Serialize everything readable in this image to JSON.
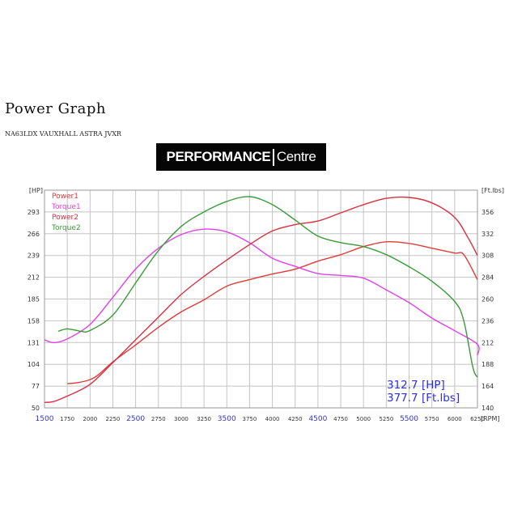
{
  "page": {
    "title": "Power Graph",
    "subtitle": "NA63LDX VAUXHALL ASTRA JVXR",
    "logo": {
      "part1": "PERFORMANCE",
      "part2": "Centre"
    }
  },
  "colors": {
    "power1": "#e03a3a",
    "torque1": "#e040e8",
    "power2": "#d93040",
    "torque2": "#3a9a3a",
    "grid": "#c4c4c4",
    "readout": "#2e2ee0",
    "highlight_tick": "#3333cc"
  },
  "chart_data": {
    "type": "line",
    "x_unit": "RPM",
    "xlim": [
      1500,
      6250
    ],
    "x_ticks": [
      1500,
      1750,
      2000,
      2250,
      2500,
      2750,
      3000,
      3250,
      3500,
      3750,
      4000,
      4250,
      4500,
      4750,
      5000,
      5250,
      5500,
      5750,
      6000,
      6250
    ],
    "x_ticks_highlight": [
      1500,
      2500,
      3500,
      4500,
      5500
    ],
    "y_left": {
      "unit_label": "[HP]",
      "ylim": [
        50,
        320
      ],
      "ticks": [
        50,
        77,
        104,
        131,
        158,
        185,
        212,
        239,
        266,
        293
      ]
    },
    "y_right": {
      "unit_label": "[Ft.lbs]",
      "ylim": [
        140,
        380
      ],
      "ticks": [
        140,
        164,
        188,
        212,
        236,
        260,
        284,
        308,
        332,
        356
      ]
    },
    "grid": true,
    "legend_position": "top-left",
    "series": [
      {
        "name": "Power1",
        "axis": "left",
        "color": "#e03a3a",
        "points": [
          [
            1750,
            80
          ],
          [
            1850,
            81
          ],
          [
            2000,
            85
          ],
          [
            2100,
            92
          ],
          [
            2250,
            107
          ],
          [
            2500,
            128
          ],
          [
            2750,
            150
          ],
          [
            3000,
            169
          ],
          [
            3250,
            184
          ],
          [
            3500,
            201
          ],
          [
            3750,
            209
          ],
          [
            4000,
            216
          ],
          [
            4250,
            222
          ],
          [
            4500,
            232
          ],
          [
            4750,
            240
          ],
          [
            5000,
            250
          ],
          [
            5250,
            256
          ],
          [
            5500,
            254
          ],
          [
            5750,
            248
          ],
          [
            6000,
            242
          ],
          [
            6100,
            240
          ],
          [
            6250,
            209
          ]
        ]
      },
      {
        "name": "Torque1",
        "axis": "right",
        "color": "#e040e8",
        "points": [
          [
            1500,
            215
          ],
          [
            1600,
            212
          ],
          [
            1750,
            216
          ],
          [
            2000,
            232
          ],
          [
            2250,
            262
          ],
          [
            2500,
            293
          ],
          [
            2750,
            316
          ],
          [
            3000,
            331
          ],
          [
            3250,
            337
          ],
          [
            3500,
            334
          ],
          [
            3750,
            322
          ],
          [
            4000,
            305
          ],
          [
            4250,
            296
          ],
          [
            4500,
            288
          ],
          [
            4750,
            286
          ],
          [
            5000,
            283
          ],
          [
            5250,
            270
          ],
          [
            5500,
            256
          ],
          [
            5750,
            239
          ],
          [
            6000,
            225
          ],
          [
            6250,
            210
          ],
          [
            6250,
            198
          ]
        ]
      },
      {
        "name": "Power2",
        "axis": "right",
        "color": "#d93040",
        "points": [
          [
            1500,
            146
          ],
          [
            1600,
            147
          ],
          [
            1750,
            153
          ],
          [
            2000,
            166
          ],
          [
            2250,
            190
          ],
          [
            2500,
            215
          ],
          [
            2750,
            240
          ],
          [
            3000,
            265
          ],
          [
            3250,
            285
          ],
          [
            3500,
            303
          ],
          [
            3750,
            320
          ],
          [
            4000,
            335
          ],
          [
            4250,
            342
          ],
          [
            4500,
            346
          ],
          [
            4750,
            355
          ],
          [
            5000,
            364
          ],
          [
            5250,
            371
          ],
          [
            5500,
            372
          ],
          [
            5750,
            366
          ],
          [
            6000,
            350
          ],
          [
            6150,
            327
          ],
          [
            6250,
            308
          ]
        ]
      },
      {
        "name": "Torque2",
        "axis": "left",
        "color": "#3a9a3a",
        "points": [
          [
            1650,
            145
          ],
          [
            1750,
            148
          ],
          [
            1900,
            145
          ],
          [
            2000,
            146
          ],
          [
            2250,
            165
          ],
          [
            2500,
            205
          ],
          [
            2750,
            245
          ],
          [
            3000,
            275
          ],
          [
            3250,
            293
          ],
          [
            3500,
            306
          ],
          [
            3750,
            312
          ],
          [
            4000,
            302
          ],
          [
            4250,
            283
          ],
          [
            4500,
            263
          ],
          [
            4750,
            255
          ],
          [
            5000,
            250
          ],
          [
            5250,
            240
          ],
          [
            5500,
            225
          ],
          [
            5750,
            207
          ],
          [
            6000,
            182
          ],
          [
            6100,
            158
          ],
          [
            6200,
            100
          ],
          [
            6250,
            88
          ]
        ]
      }
    ],
    "readout": {
      "power": "312.7  [HP]",
      "torque": "377.7  [Ft.lbs]"
    }
  }
}
